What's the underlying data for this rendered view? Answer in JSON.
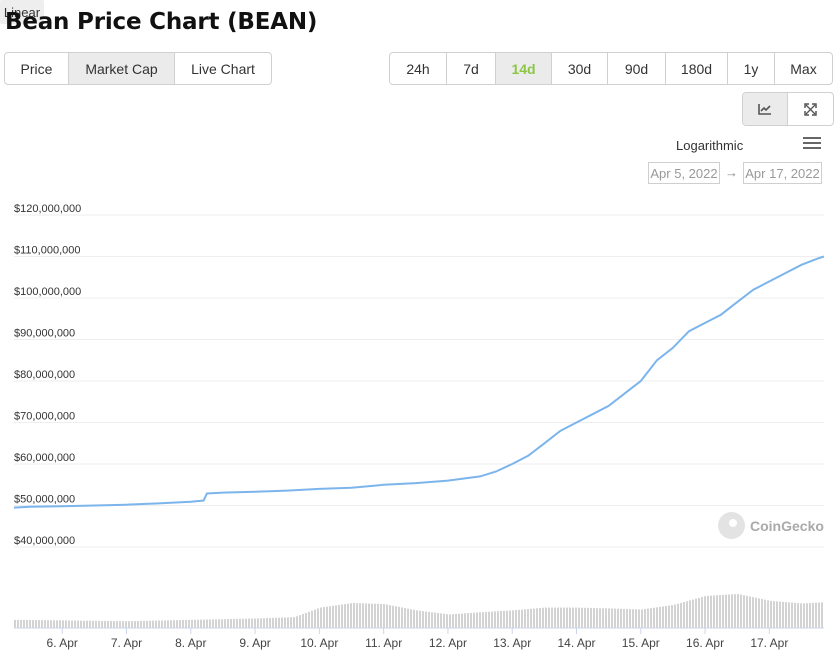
{
  "page": {
    "title": "Bean Price Chart (BEAN)"
  },
  "type_tabs": [
    {
      "label": "Price",
      "active": false
    },
    {
      "label": "Market Cap",
      "active": true
    },
    {
      "label": "Live Chart",
      "active": false
    }
  ],
  "range_tabs": [
    {
      "label": "24h",
      "active": false
    },
    {
      "label": "7d",
      "active": false
    },
    {
      "label": "14d",
      "active": true
    },
    {
      "label": "30d",
      "active": false
    },
    {
      "label": "90d",
      "active": false
    },
    {
      "label": "180d",
      "active": false
    },
    {
      "label": "1y",
      "active": false
    },
    {
      "label": "Max",
      "active": false
    }
  ],
  "view_buttons": [
    {
      "icon": "line-chart-icon",
      "active": true
    },
    {
      "icon": "expand-icon",
      "active": false
    }
  ],
  "scale": {
    "log_label": "Logarithmic",
    "linear_label": "Linear",
    "selected": "Linear"
  },
  "date_range": {
    "from": "Apr 5, 2022",
    "arrow": "→",
    "to": "Apr 17, 2022"
  },
  "watermark": {
    "text": "CoinGecko"
  },
  "colors": {
    "line": "#7cb5ec",
    "accent": "#8dc647",
    "volume": "#d3d3d3"
  },
  "chart_data": {
    "type": "line",
    "title": "",
    "xlabel": "",
    "ylabel": "",
    "ylim": [
      40000000,
      120000000
    ],
    "y_ticks": [
      "$120,000,000",
      "$110,000,000",
      "$100,000,000",
      "$90,000,000",
      "$80,000,000",
      "$70,000,000",
      "$60,000,000",
      "$50,000,000",
      "$40,000,000"
    ],
    "x_ticks": [
      "6. Apr",
      "7. Apr",
      "8. Apr",
      "9. Apr",
      "10. Apr",
      "11. Apr",
      "12. Apr",
      "13. Apr",
      "14. Apr",
      "15. Apr",
      "16. Apr",
      "17. Apr"
    ],
    "xlim": [
      5.25,
      17.85
    ],
    "grid": true,
    "series": [
      {
        "x": [
          5.25,
          5.5,
          6.0,
          6.5,
          7.0,
          7.5,
          8.0,
          8.2,
          8.25,
          8.5,
          9.0,
          9.5,
          10.0,
          10.5,
          11.0,
          11.5,
          12.0,
          12.5,
          12.75,
          13.0,
          13.25,
          13.5,
          13.75,
          14.0,
          14.25,
          14.5,
          14.75,
          15.0,
          15.25,
          15.5,
          15.75,
          16.0,
          16.25,
          16.5,
          16.75,
          17.0,
          17.25,
          17.5,
          17.75,
          17.85
        ],
        "values": [
          49500000,
          49700000,
          49800000,
          50000000,
          50200000,
          50500000,
          50900000,
          51200000,
          52900000,
          53100000,
          53300000,
          53600000,
          54000000,
          54300000,
          55000000,
          55400000,
          56000000,
          57000000,
          58200000,
          60000000,
          62000000,
          65000000,
          68000000,
          70000000,
          72000000,
          74000000,
          77000000,
          80000000,
          85000000,
          88000000,
          92000000,
          94000000,
          96000000,
          99000000,
          102000000,
          104000000,
          106000000,
          108000000,
          109500000,
          110000000
        ]
      }
    ],
    "volume": [
      {
        "x": 5.25,
        "value": 0.3
      },
      {
        "x": 6.0,
        "value": 0.28
      },
      {
        "x": 7.0,
        "value": 0.25
      },
      {
        "x": 8.0,
        "value": 0.3
      },
      {
        "x": 9.0,
        "value": 0.35
      },
      {
        "x": 9.6,
        "value": 0.4
      },
      {
        "x": 10.0,
        "value": 0.75
      },
      {
        "x": 10.5,
        "value": 0.92
      },
      {
        "x": 11.0,
        "value": 0.88
      },
      {
        "x": 11.5,
        "value": 0.65
      },
      {
        "x": 12.0,
        "value": 0.5
      },
      {
        "x": 12.5,
        "value": 0.58
      },
      {
        "x": 13.0,
        "value": 0.65
      },
      {
        "x": 13.5,
        "value": 0.75
      },
      {
        "x": 14.0,
        "value": 0.75
      },
      {
        "x": 14.5,
        "value": 0.72
      },
      {
        "x": 15.0,
        "value": 0.68
      },
      {
        "x": 15.5,
        "value": 0.85
      },
      {
        "x": 16.0,
        "value": 1.18
      },
      {
        "x": 16.5,
        "value": 1.25
      },
      {
        "x": 17.0,
        "value": 1.0
      },
      {
        "x": 17.5,
        "value": 0.9
      },
      {
        "x": 17.85,
        "value": 0.95
      }
    ]
  }
}
